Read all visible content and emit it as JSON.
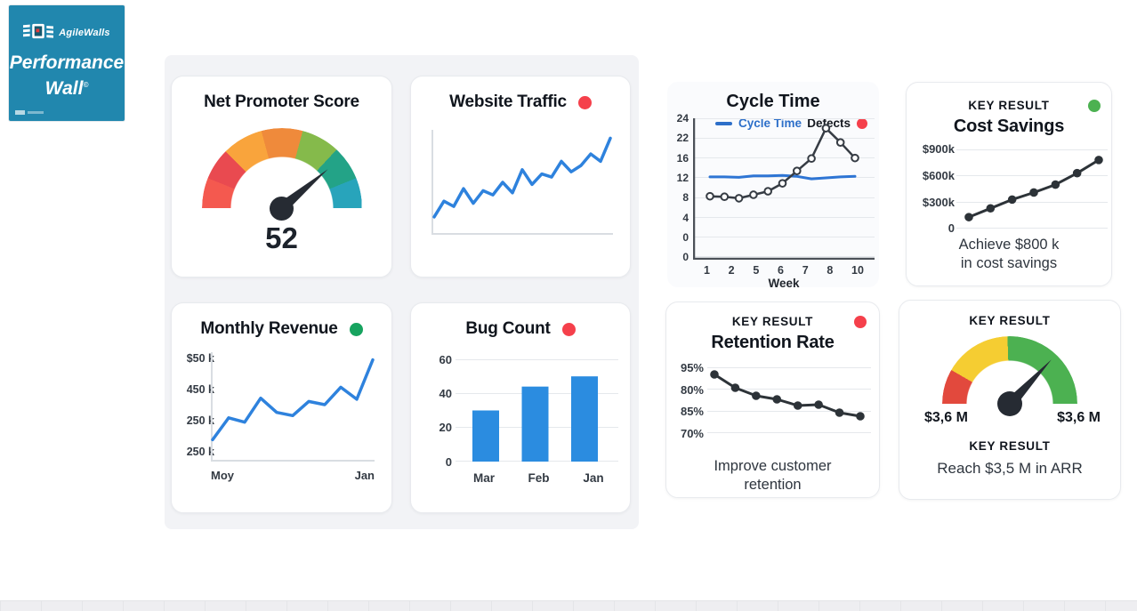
{
  "logo": {
    "brand": "AgileWalls",
    "product_line1": "Performance",
    "product_line2": "Wall",
    "trademark": "©"
  },
  "colors": {
    "brand_teal": "#2187ae",
    "status_red": "#f5404b",
    "status_green": "#17a35f",
    "status_green_light": "#4cb151",
    "legend_blue": "#2d6fc9",
    "chart_blue": "#2e82dd",
    "chart_dark": "#363c44"
  },
  "cards": {
    "nps": {
      "title": "Net Promoter Score",
      "value": "52"
    },
    "website_traffic": {
      "title": "Website Traffic"
    },
    "monthly_revenue": {
      "title": "Monthly Revenue",
      "y_labels": [
        "$50 k",
        "450 k",
        "250 k",
        "250 k"
      ],
      "x_labels": [
        "Moy",
        "Jan"
      ]
    },
    "bug_count": {
      "title": "Bug Count",
      "y_labels": [
        "60",
        "40",
        "20",
        "0"
      ],
      "x_labels": [
        "Mar",
        "Feb",
        "Jan"
      ]
    },
    "cycle_time": {
      "title": "Cycle Time",
      "legend_line_label": "Cycle Time",
      "legend_scatter_label": "Defects",
      "y_labels": [
        "24",
        "22",
        "16",
        "12",
        "8",
        "4",
        "0",
        "0"
      ],
      "x_labels": [
        "1",
        "2",
        "5",
        "6",
        "7",
        "8",
        "10"
      ],
      "x_title": "Week"
    },
    "cost_savings": {
      "kicker": "KEY RESULT",
      "title": "Cost Savings",
      "y_labels": [
        "$900k",
        "$600k",
        "$300k",
        "0"
      ],
      "caption_line1": "Achieve $800 k",
      "caption_line2": "in cost savings"
    },
    "retention": {
      "kicker": "KEY RESULT",
      "title": "Retention Rate",
      "y_labels": [
        "95%",
        "80%",
        "85%",
        "70%"
      ],
      "caption_line1": "Improve customer",
      "caption_line2": "retention"
    },
    "arr": {
      "kicker": "KEY RESULT",
      "gauge_left_label": "$3,6 M",
      "gauge_right_label": "$3,6 M",
      "footer_kicker": "KEY RESULT",
      "footer_text": "Reach $3,5 M in ARR"
    }
  },
  "chart_data": [
    {
      "id": "nps_gauge",
      "type": "gauge",
      "title": "Net Promoter Score",
      "value": 52,
      "min": 0,
      "max": 100,
      "needle_deg": 50,
      "needle_color": "#262b33",
      "segments": [
        {
          "color": "#f4594f",
          "to_deg": 22
        },
        {
          "color": "#e94a50",
          "to_deg": 45
        },
        {
          "color": "#f9a43c",
          "to_deg": 75
        },
        {
          "color": "#ef8a3b",
          "to_deg": 105
        },
        {
          "color": "#85ba4b",
          "to_deg": 133
        },
        {
          "color": "#23a387",
          "to_deg": 158
        },
        {
          "color": "#28a4bb",
          "to_deg": 180
        }
      ]
    },
    {
      "id": "website_traffic",
      "type": "line",
      "title": "Website Traffic",
      "ylim": [
        0,
        100
      ],
      "grid": false,
      "series": [
        {
          "name": "traffic",
          "color": "#2e82dd",
          "width": 3.5,
          "values": [
            17,
            32,
            27,
            44,
            30,
            42,
            38,
            50,
            40,
            62,
            48,
            58,
            55,
            70,
            60,
            66,
            77,
            70,
            92
          ]
        }
      ]
    },
    {
      "id": "monthly_revenue",
      "type": "line",
      "title": "Monthly Revenue",
      "ylim": [
        0,
        100
      ],
      "grid": false,
      "x_tick_labels": [
        "Moy",
        "Jan"
      ],
      "series": [
        {
          "name": "revenue",
          "color": "#2e82dd",
          "width": 3.5,
          "values": [
            20,
            40,
            36,
            58,
            45,
            42,
            55,
            52,
            68,
            57,
            93
          ]
        }
      ]
    },
    {
      "id": "bug_count",
      "type": "bar",
      "title": "Bug Count",
      "categories": [
        "Mar",
        "Feb",
        "Jan"
      ],
      "values": [
        30,
        44,
        50
      ],
      "ylim": [
        0,
        60
      ],
      "grid": true,
      "bar_color": "#2b8ce0"
    },
    {
      "id": "cycle_time",
      "type": "line",
      "title": "Cycle Time",
      "xlabel": "Week",
      "x_tick_labels": [
        "1",
        "2",
        "5",
        "6",
        "7",
        "8",
        "10"
      ],
      "y_axis_values": [
        24,
        22,
        16,
        12,
        8,
        4,
        0
      ],
      "grid": true,
      "legend_position": "top",
      "series": [
        {
          "name": "Cycle Time",
          "color": "#2e75d4",
          "width": 3,
          "values": [
            12.2,
            12.2,
            12.1,
            12.4,
            12.4,
            12.5,
            12.3,
            11.8,
            12.0,
            12.2,
            12.3
          ]
        },
        {
          "name": "Defects",
          "color": "#363c44",
          "width": 2.5,
          "marker": "open",
          "values": [
            8.3,
            8.2,
            7.9,
            8.6,
            9.3,
            10.9,
            13.4,
            15.9,
            23,
            20.7,
            16
          ]
        }
      ]
    },
    {
      "id": "cost_savings",
      "type": "line",
      "title": "Cost Savings",
      "ylim": [
        0,
        900
      ],
      "y_tick_labels": [
        "$900k",
        "$600k",
        "$300k",
        "0"
      ],
      "grid": true,
      "target_text": "Achieve $800 k in cost savings",
      "series": [
        {
          "name": "savings",
          "color": "#2d3338",
          "width": 3,
          "marker": "filled",
          "values": [
            130,
            230,
            330,
            410,
            500,
            630,
            780
          ]
        }
      ]
    },
    {
      "id": "retention",
      "type": "line",
      "title": "Retention Rate",
      "ylim": [
        55,
        92
      ],
      "y_tick_labels": [
        "95%",
        "80%",
        "85%",
        "70%"
      ],
      "grid": true,
      "target_text": "Improve customer retention",
      "series": [
        {
          "name": "retention",
          "color": "#2d3338",
          "width": 3,
          "marker": "filled",
          "values": [
            88,
            80.5,
            76,
            74,
            70.5,
            71,
            66.5,
            64.5
          ]
        }
      ]
    },
    {
      "id": "arr_gauge",
      "type": "gauge",
      "title": "Reach $3,5 M in ARR",
      "left_label": "$3,6 M",
      "right_label": "$3,6 M",
      "needle_deg": 43,
      "needle_color": "#262b33",
      "segments": [
        {
          "color": "#e2493d",
          "to_deg": 30
        },
        {
          "color": "#f5cd32",
          "to_deg": 88
        },
        {
          "color": "#4cb151",
          "to_deg": 180
        }
      ]
    }
  ]
}
